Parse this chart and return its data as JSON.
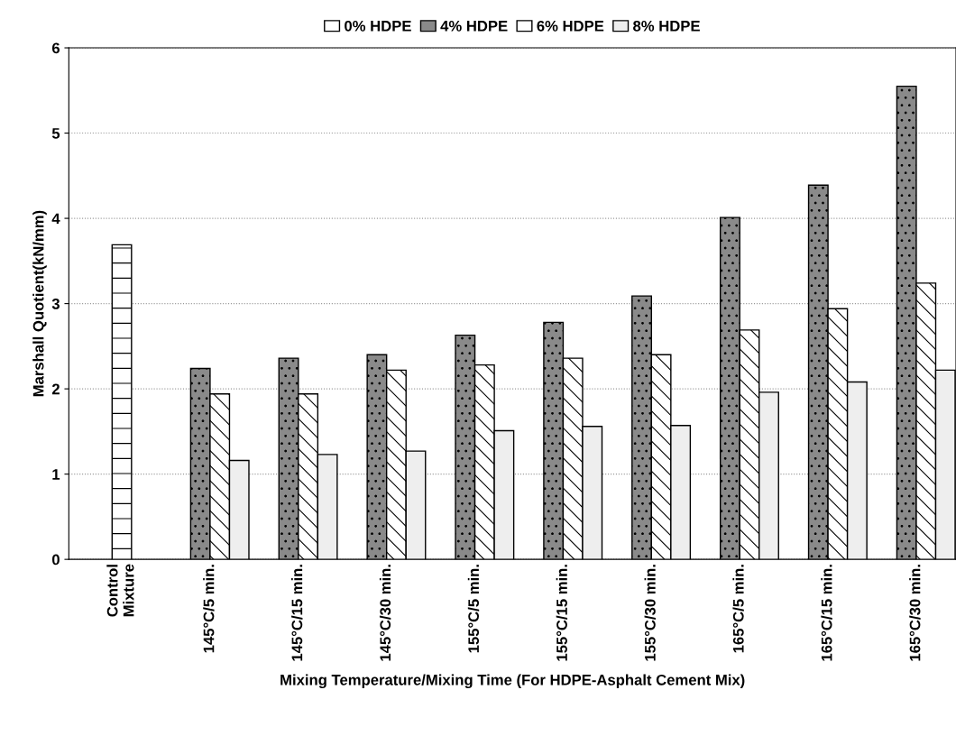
{
  "chart_data": {
    "type": "bar",
    "categories": [
      "Control\nMixture",
      "145°C/5 min.",
      "145°C/15 min.",
      "145°C/30 min.",
      "155°C/5 min.",
      "155°C/15 min.",
      "155°C/30 min.",
      "165°C/5 min.",
      "165°C/15 min.",
      "165°C/30 min."
    ],
    "series": [
      {
        "name": "0% HDPE",
        "color": "#ffffff",
        "values": [
          3.69,
          null,
          null,
          null,
          null,
          null,
          null,
          null,
          null,
          null
        ]
      },
      {
        "name": "4% HDPE",
        "color": "#8a8a8a",
        "values": [
          null,
          2.24,
          2.36,
          2.4,
          2.63,
          2.78,
          3.09,
          4.01,
          4.39,
          5.55
        ]
      },
      {
        "name": "6% HDPE",
        "color": "#ffffff",
        "values": [
          null,
          1.94,
          1.94,
          2.22,
          2.28,
          2.36,
          2.4,
          2.69,
          2.94,
          3.24
        ]
      },
      {
        "name": "8% HDPE",
        "color": "#eeeeee",
        "values": [
          null,
          1.16,
          1.23,
          1.27,
          1.51,
          1.56,
          1.57,
          1.96,
          2.08,
          2.22
        ]
      }
    ],
    "xlabel": "Mixing Temperature/Mixing Time (For HDPE-Asphalt Cement Mix)",
    "ylabel": "Marshall Quotient(kN/mm)",
    "ylim": [
      0,
      6
    ],
    "yticks": [
      0,
      1,
      2,
      3,
      4,
      5,
      6
    ],
    "grid": "y",
    "legend": "top"
  }
}
